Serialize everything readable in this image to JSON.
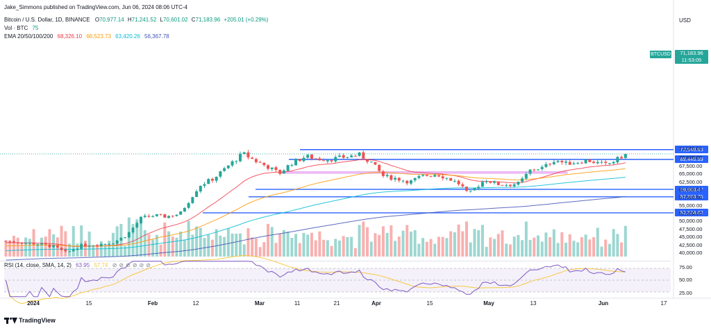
{
  "header": {
    "publisher": "Jake_Simmons published on TradingView.com, Jun 06, 2024 08:06 UTC-4",
    "currency": "USD"
  },
  "legend": {
    "symbol": "Bitcoin / U.S. Dollar, 1D, BINANCE",
    "o_label": "O",
    "o_value": "70,977.14",
    "h_label": "H",
    "h_value": "71,241.52",
    "l_label": "L",
    "l_value": "70,601.02",
    "c_label": "C",
    "c_value": "71,183.96",
    "change": "+205.01 (+0.29%)",
    "vol_label": "Vol · BTC",
    "vol_value": "75",
    "ema_label": "EMA 20/50/100/200",
    "ema20": "68,326.10",
    "ema50": "66,523.73",
    "ema100": "63,420.26",
    "ema200": "56,367.78",
    "rsi_label": "RSI (14, close, SMA, 14, 2)",
    "rsi_value": "63.95",
    "rsi_ma": "57.74"
  },
  "price_label": {
    "ticker": "BTCUSD",
    "price": "71,183.96",
    "countdown": "11:53:05"
  },
  "levels": [
    {
      "label": "72,548.83"
    },
    {
      "label": "69,446.69"
    },
    {
      "label": "59,963.47"
    },
    {
      "label": "57,593.75"
    },
    {
      "label": "52,524.62"
    }
  ],
  "rsi_ticks": [
    "75.00",
    "50.00",
    "25.00"
  ],
  "footer": {
    "brand": "TradingView"
  },
  "colors": {
    "up": "#26a69a",
    "down": "#ef5350",
    "ema20": "#f23645",
    "ema50": "#ff9800",
    "ema100": "#00bcd4",
    "ema200": "#3f51b5",
    "level": "#2962ff",
    "zone": "#e040fb",
    "rsi": "#7e57c2"
  },
  "chart_data": {
    "type": "candlestick",
    "symbol": "BTCUSD",
    "timeframe": "1D",
    "x_tick_labels": [
      "2024",
      "15",
      "Feb",
      "12",
      "Mar",
      "11",
      "21",
      "Apr",
      "15",
      "May",
      "13",
      "Jun",
      "17"
    ],
    "y_tick_labels": [
      "40,000.00",
      "42,500.00",
      "45,000.00",
      "47,500.00",
      "50,000.00",
      "52,500.00",
      "55,000.00",
      "57,500.00",
      "60,000.00",
      "62,500.00",
      "65,000.00",
      "67,500.00",
      "70,000.00",
      "73,000.00"
    ],
    "ylim": [
      40000,
      73500
    ],
    "last_close": 71183.96,
    "horizontal_levels": [
      72548.83,
      69446.69,
      59963.47,
      57593.75,
      52524.62
    ],
    "resistance_zone": [
      65000,
      65600
    ],
    "monthly_closes": {
      "Dec end": 42300,
      "Jan mid": 42500,
      "Jan end": 42800,
      "Feb mid": 52000,
      "Feb end": 61000,
      "Mar mid": 68000,
      "Mar end": 70000,
      "Apr mid": 63000,
      "Apr end": 60500,
      "May mid": 66000,
      "May end": 67500,
      "Jun 6": 71184
    },
    "ema_latest": {
      "ema20": 68326.1,
      "ema50": 66523.73,
      "ema100": 63420.26,
      "ema200": 56367.78
    },
    "rsi": {
      "value": 63.95,
      "ma": 57.74,
      "bands": [
        30,
        50,
        70
      ]
    }
  }
}
